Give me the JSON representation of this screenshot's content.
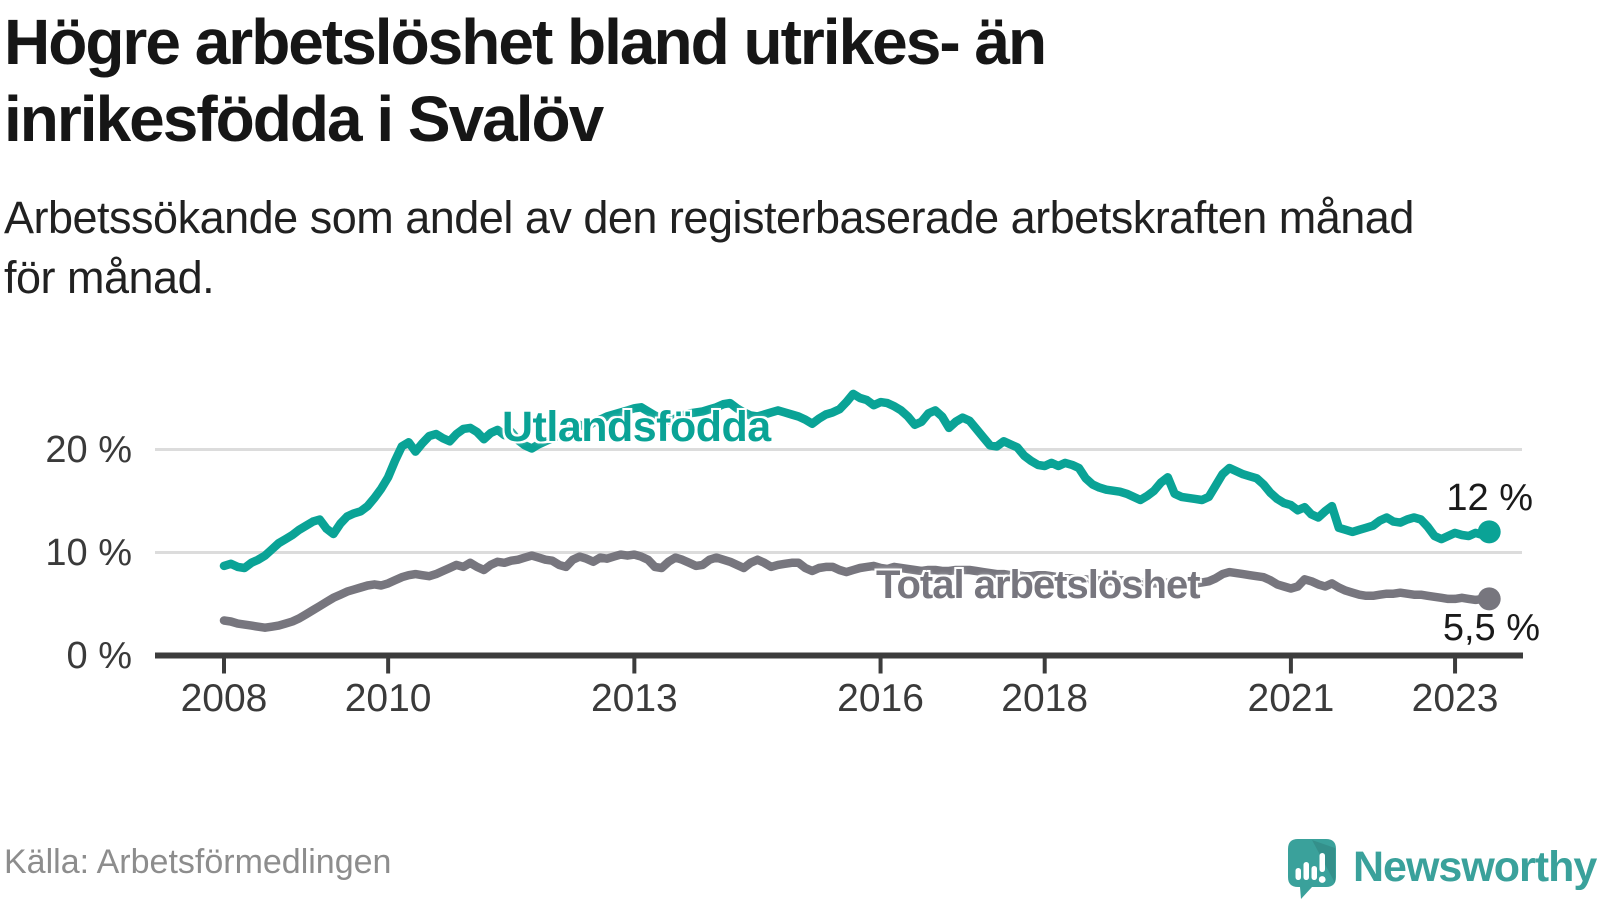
{
  "title": {
    "line1": "Högre arbetslöshet bland utrikes- än",
    "line2": "inrikesfödda i Svalöv"
  },
  "subtitle": {
    "line1": "Arbetssökande som andel av den registerbaserade arbetskraften månad",
    "line2": "för månad."
  },
  "source": "Källa: Arbetsförmedlingen",
  "logo": {
    "text": "Newsworthy",
    "color": "#3aa19b",
    "icon": "speech-bubble-bar-chart-exclamation"
  },
  "colors": {
    "grid": "#dcdcdc",
    "axis": "#3c3c3c",
    "tick_text": "#3a3a3a",
    "teal": "#0aa396",
    "gray": "#77767e"
  },
  "chart_data": {
    "type": "line",
    "title": "Högre arbetslöshet bland utrikes- än inrikesfödda i Svalöv",
    "subtitle": "Arbetssökande som andel av den registerbaserade arbetskraften månad för månad.",
    "xlabel": "",
    "ylabel": "",
    "x_unit": "month",
    "x_start_year": 2008,
    "points_per_year": 12,
    "x_range": [
      "2008-01",
      "2023-06"
    ],
    "ylim": [
      0,
      27
    ],
    "grid": "horizontal",
    "legend_position": "inline-labels",
    "yticks": [
      {
        "value": 0,
        "label": "0 %"
      },
      {
        "value": 10,
        "label": "10 %"
      },
      {
        "value": 20,
        "label": "20 %"
      }
    ],
    "xticks": [
      {
        "year": 2008,
        "label": "2008"
      },
      {
        "year": 2010,
        "label": "2010"
      },
      {
        "year": 2013,
        "label": "2013"
      },
      {
        "year": 2016,
        "label": "2016"
      },
      {
        "year": 2018,
        "label": "2018"
      },
      {
        "year": 2021,
        "label": "2021"
      },
      {
        "year": 2023,
        "label": "2023"
      }
    ],
    "series": [
      {
        "name": "Utlandsfödda",
        "color": "#0aa396",
        "end_label": "12 %",
        "end_value": 12.0,
        "values": [
          8.7,
          8.9,
          8.6,
          8.5,
          9.0,
          9.3,
          9.7,
          10.3,
          10.9,
          11.3,
          11.7,
          12.2,
          12.6,
          13.0,
          13.2,
          12.3,
          11.8,
          12.8,
          13.5,
          13.8,
          14.0,
          14.5,
          15.3,
          16.2,
          17.3,
          18.9,
          20.3,
          20.7,
          19.8,
          20.6,
          21.3,
          21.5,
          21.1,
          20.8,
          21.5,
          22.0,
          22.1,
          21.7,
          21.0,
          21.6,
          21.9,
          21.4,
          21.7,
          20.9,
          20.4,
          20.1,
          20.5,
          20.8,
          21.1,
          21.4,
          21.8,
          22.1,
          22.4,
          22.2,
          22.6,
          22.9,
          23.2,
          23.4,
          23.6,
          23.8,
          24.0,
          24.1,
          23.7,
          23.3,
          23.0,
          22.8,
          23.0,
          23.3,
          23.5,
          23.6,
          23.7,
          23.9,
          24.1,
          24.4,
          24.5,
          24.0,
          23.6,
          23.3,
          23.2,
          23.4,
          23.6,
          23.8,
          23.6,
          23.4,
          23.2,
          22.9,
          22.5,
          23.0,
          23.4,
          23.6,
          23.9,
          24.6,
          25.4,
          25.0,
          24.8,
          24.3,
          24.6,
          24.5,
          24.2,
          23.8,
          23.2,
          22.4,
          22.7,
          23.5,
          23.8,
          23.2,
          22.1,
          22.7,
          23.1,
          22.8,
          22.0,
          21.2,
          20.4,
          20.3,
          20.8,
          20.5,
          20.2,
          19.4,
          18.9,
          18.5,
          18.4,
          18.7,
          18.4,
          18.7,
          18.5,
          18.2,
          17.2,
          16.6,
          16.3,
          16.1,
          16.0,
          15.9,
          15.7,
          15.4,
          15.1,
          15.5,
          16.0,
          16.8,
          17.3,
          15.7,
          15.4,
          15.3,
          15.2,
          15.1,
          15.4,
          16.5,
          17.6,
          18.2,
          17.9,
          17.6,
          17.4,
          17.2,
          16.6,
          15.8,
          15.2,
          14.8,
          14.6,
          14.1,
          14.4,
          13.7,
          13.4,
          14.0,
          14.5,
          12.4,
          12.2,
          12.0,
          12.2,
          12.4,
          12.6,
          13.1,
          13.4,
          13.0,
          12.9,
          13.2,
          13.4,
          13.2,
          12.5,
          11.6,
          11.3,
          11.6,
          11.9,
          11.7,
          11.6,
          11.9,
          11.7,
          12.0
        ]
      },
      {
        "name": "Total arbetslöshet",
        "color": "#77767e",
        "end_label": "5,5 %",
        "end_value": 5.5,
        "values": [
          3.4,
          3.3,
          3.1,
          3.0,
          2.9,
          2.8,
          2.7,
          2.8,
          2.9,
          3.1,
          3.3,
          3.6,
          4.0,
          4.4,
          4.8,
          5.2,
          5.6,
          5.9,
          6.2,
          6.4,
          6.6,
          6.8,
          6.9,
          6.8,
          7.0,
          7.3,
          7.6,
          7.8,
          7.9,
          7.8,
          7.7,
          7.9,
          8.2,
          8.5,
          8.8,
          8.6,
          9.0,
          8.6,
          8.3,
          8.8,
          9.1,
          9.0,
          9.2,
          9.3,
          9.5,
          9.7,
          9.5,
          9.3,
          9.2,
          8.8,
          8.6,
          9.3,
          9.6,
          9.4,
          9.1,
          9.5,
          9.4,
          9.6,
          9.8,
          9.7,
          9.8,
          9.6,
          9.3,
          8.6,
          8.5,
          9.1,
          9.5,
          9.3,
          9.0,
          8.7,
          8.8,
          9.3,
          9.5,
          9.3,
          9.1,
          8.8,
          8.5,
          9.0,
          9.3,
          9.0,
          8.6,
          8.8,
          8.9,
          9.0,
          9.0,
          8.5,
          8.2,
          8.5,
          8.6,
          8.6,
          8.3,
          8.1,
          8.3,
          8.5,
          8.6,
          8.7,
          8.5,
          8.4,
          8.6,
          8.5,
          8.4,
          8.3,
          8.2,
          8.3,
          8.3,
          8.2,
          8.2,
          8.3,
          8.3,
          8.3,
          8.2,
          8.1,
          8.0,
          7.9,
          7.9,
          7.8,
          7.8,
          7.7,
          7.7,
          7.8,
          7.8,
          7.7,
          7.6,
          7.5,
          7.5,
          7.4,
          7.4,
          7.3,
          7.3,
          7.2,
          7.2,
          7.3,
          7.3,
          7.2,
          7.1,
          7.1,
          7.0,
          7.0,
          7.1,
          7.0,
          7.0,
          6.9,
          7.0,
          7.1,
          7.2,
          7.5,
          7.9,
          8.1,
          8.0,
          7.9,
          7.8,
          7.7,
          7.6,
          7.3,
          6.9,
          6.7,
          6.5,
          6.7,
          7.4,
          7.2,
          6.9,
          6.7,
          7.0,
          6.6,
          6.3,
          6.1,
          5.9,
          5.8,
          5.8,
          5.9,
          6.0,
          6.0,
          6.1,
          6.0,
          5.9,
          5.9,
          5.8,
          5.7,
          5.6,
          5.5,
          5.5,
          5.6,
          5.5,
          5.4,
          5.5,
          5.5
        ]
      }
    ]
  }
}
